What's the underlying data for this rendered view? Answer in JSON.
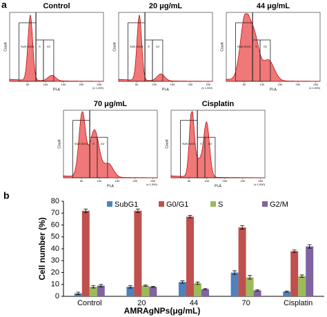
{
  "panel_a": {
    "label": "a",
    "x_label": "PI-A",
    "y_label": "Count",
    "x_unit": "(x 1,000)",
    "gates": [
      "SUB G0G1",
      "S",
      "G2"
    ],
    "xticks": [
      50,
      100,
      150,
      200,
      250
    ],
    "plots": [
      {
        "title": "Control"
      },
      {
        "title": "20 μg/mL"
      },
      {
        "title": "44 μg/mL"
      },
      {
        "title": "70 μg/mL"
      },
      {
        "title": "Cisplatin"
      }
    ]
  },
  "chart_data": {
    "type": "bar",
    "panel_label": "b",
    "y_label": "Cell number (%)",
    "x_label": "AMRAgNPs(μg/mL)",
    "categories": [
      "Control",
      "20",
      "44",
      "70",
      "Cisplatin"
    ],
    "series": [
      {
        "name": "SubG1",
        "color": "#4f81bd",
        "values": [
          2.5,
          8,
          12,
          20,
          4
        ],
        "errors": [
          1,
          1,
          1,
          1.5,
          0.5
        ]
      },
      {
        "name": "G0/G1",
        "color": "#c0504d",
        "values": [
          72,
          72,
          67,
          58,
          38
        ],
        "errors": [
          1.5,
          1.5,
          1,
          1.5,
          1
        ]
      },
      {
        "name": "S",
        "color": "#9bbb59",
        "values": [
          8,
          9,
          11,
          16,
          17
        ],
        "errors": [
          1,
          0.5,
          1,
          1.5,
          1
        ]
      },
      {
        "name": "G2/M",
        "color": "#8064a2",
        "values": [
          9,
          8,
          6,
          5,
          42
        ],
        "errors": [
          1,
          0.5,
          0.5,
          0.5,
          1.5
        ]
      }
    ],
    "ylim": [
      0,
      80
    ],
    "yticks": [
      0,
      10,
      20,
      30,
      40,
      50,
      60,
      70,
      80
    ],
    "legend": "top"
  }
}
